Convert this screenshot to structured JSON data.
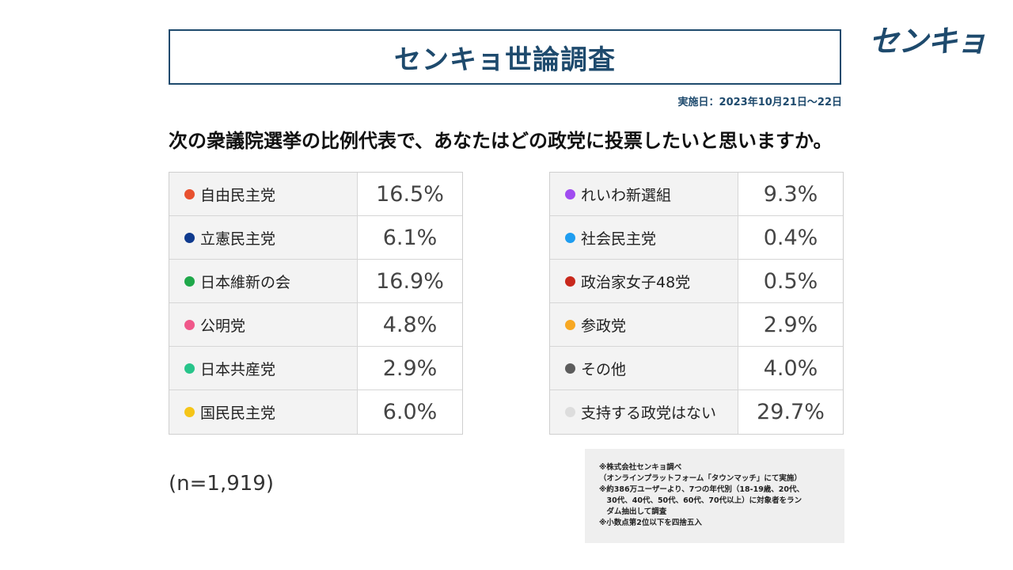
{
  "header": {
    "title": "センキョ世論調査",
    "logo_text": "センキョ",
    "date": "実施日：2023年10月21日～22日"
  },
  "question": "次の衆議院選挙の比例代表で、あなたはどの政党に投票したいと思いますか。",
  "sample_size": "(n=1,919)",
  "notes": [
    "※株式会社センキョ調べ",
    "（オンラインプラットフォーム「タウンマッチ」にて実施）",
    "※約386万ユーザーより、7つの年代別（18-19歳、20代、",
    "　30代、40代、50代、60代、70代以上）に対象者をラン",
    "　ダム抽出して調査",
    "※小数点第2位以下を四捨五入"
  ],
  "chart_data": {
    "type": "table",
    "title": "センキョ世論調査",
    "unit": "%",
    "categories": [
      "自由民主党",
      "立憲民主党",
      "日本維新の会",
      "公明党",
      "日本共産党",
      "国民民主党",
      "れいわ新選組",
      "社会民主党",
      "政治家女子48党",
      "参政党",
      "その他",
      "支持する政党はない"
    ],
    "values": [
      16.5,
      6.1,
      16.9,
      4.8,
      2.9,
      6.0,
      9.3,
      0.4,
      0.5,
      2.9,
      4.0,
      29.7
    ],
    "left_column": [
      {
        "label": "自由民主党",
        "value": "16.5%",
        "color": "#e8512f"
      },
      {
        "label": "立憲民主党",
        "value": "6.1%",
        "color": "#0f3a8e"
      },
      {
        "label": "日本維新の会",
        "value": "16.9%",
        "color": "#1fa84a"
      },
      {
        "label": "公明党",
        "value": "4.8%",
        "color": "#f0588a"
      },
      {
        "label": "日本共産党",
        "value": "2.9%",
        "color": "#27c48a"
      },
      {
        "label": "国民民主党",
        "value": "6.0%",
        "color": "#f5c518"
      }
    ],
    "right_column": [
      {
        "label": "れいわ新選組",
        "value": "9.3%",
        "color": "#a04cf0"
      },
      {
        "label": "社会民主党",
        "value": "0.4%",
        "color": "#1e9df0"
      },
      {
        "label": "政治家女子48党",
        "value": "0.5%",
        "color": "#c8281c"
      },
      {
        "label": "参政党",
        "value": "2.9%",
        "color": "#f7a823"
      },
      {
        "label": "その他",
        "value": "4.0%",
        "color": "#5c5c5c"
      },
      {
        "label": "支持する政党はない",
        "value": "29.7%",
        "color": "#dddddd"
      }
    ]
  }
}
